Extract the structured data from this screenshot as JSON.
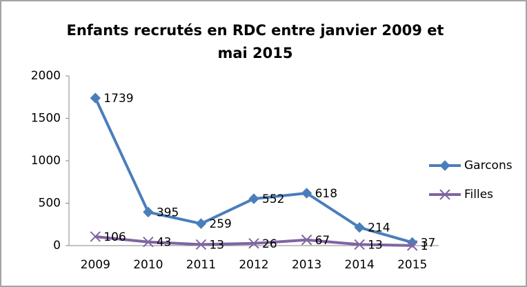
{
  "chart_data": {
    "type": "line",
    "title": [
      "Enfants recrutés en RDC entre janvier 2009 et",
      "mai 2015"
    ],
    "categories": [
      "2009",
      "2010",
      "2011",
      "2012",
      "2013",
      "2014",
      "2015"
    ],
    "series": [
      {
        "name": "Garcons",
        "color": "#4a7ebb",
        "marker": "diamond",
        "values": [
          1739,
          395,
          259,
          552,
          618,
          214,
          37
        ]
      },
      {
        "name": "Filles",
        "color": "#8064a2",
        "marker": "x",
        "values": [
          106,
          43,
          13,
          26,
          67,
          13,
          1
        ]
      }
    ],
    "ylim": [
      0,
      2000
    ],
    "yticks": [
      0,
      500,
      1000,
      1500,
      2000
    ],
    "grid": false,
    "legend": "right"
  }
}
